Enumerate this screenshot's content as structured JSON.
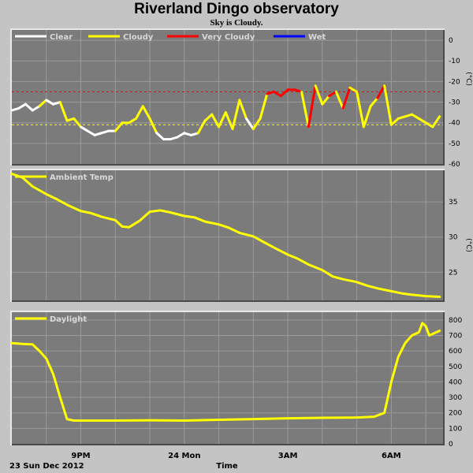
{
  "header": {
    "title": "Riverland Dingo observatory",
    "subtitle": "Sky is Cloudy."
  },
  "footer": {
    "date_label": "23 Sun Dec 2012",
    "time_label": "Time"
  },
  "colors": {
    "background": "#c4c4c4",
    "panel": "#7b7b7b",
    "grid": "#9a9a9a",
    "clear": "#ffffff",
    "cloudy": "#ffff00",
    "very_cloudy": "#ff0000",
    "wet": "#0000ff",
    "threshold_cloudy": "#ffff00",
    "threshold_very_cloudy": "#ff0000"
  },
  "chart_data": [
    {
      "type": "line",
      "id": "sky",
      "ylabel": "(°C)",
      "ylim": [
        -60,
        5
      ],
      "yticks": [
        0,
        -10,
        -20,
        -30,
        -40,
        -50,
        -60
      ],
      "grid": true,
      "legend_position": "top-left",
      "legend": [
        {
          "name": "Clear",
          "color": "#ffffff"
        },
        {
          "name": "Cloudy",
          "color": "#ffff00"
        },
        {
          "name": "Very Cloudy",
          "color": "#ff0000"
        },
        {
          "name": "Wet",
          "color": "#0000ff"
        }
      ],
      "thresholds": [
        {
          "value": -25,
          "color": "#ff0000"
        },
        {
          "value": -41,
          "color": "#ffff00"
        }
      ],
      "x": [
        19.0,
        19.2,
        19.4,
        19.6,
        19.8,
        20.0,
        20.2,
        20.4,
        20.6,
        20.8,
        21.0,
        21.2,
        21.4,
        21.6,
        21.8,
        22.0,
        22.2,
        22.4,
        22.6,
        22.8,
        23.0,
        23.2,
        23.4,
        23.6,
        23.8,
        24.0,
        24.2,
        24.4,
        24.6,
        24.8,
        25.0,
        25.2,
        25.4,
        25.6,
        25.8,
        26.0,
        26.2,
        26.4,
        26.6,
        26.8,
        27.0,
        27.2,
        27.4,
        27.6,
        27.8,
        28.0,
        28.2,
        28.4,
        28.6,
        28.8,
        29.0,
        29.2,
        29.4,
        29.6,
        29.8,
        30.0,
        30.2,
        30.4,
        30.6,
        30.8,
        31.0,
        31.2,
        31.4
      ],
      "y": [
        -34,
        -33,
        -31,
        -34,
        -32,
        -29,
        -31,
        -30,
        -39,
        -38,
        -42,
        -44,
        -46,
        -45,
        -44,
        -44,
        -40,
        -40,
        -38,
        -32,
        -38,
        -45,
        -48,
        -48,
        -47,
        -45,
        -46,
        -45,
        -39,
        -36,
        -42,
        -35,
        -43,
        -29,
        -38,
        -43,
        -38,
        -26,
        -25,
        -27,
        -24,
        -24,
        -25,
        -42,
        -22,
        -31,
        -27,
        -25,
        -33,
        -23,
        -25,
        -42,
        -32,
        -28,
        -22,
        -41,
        -38,
        -37,
        -36,
        -38,
        -40,
        -42,
        -37
      ],
      "states": [
        "clear",
        "clear",
        "clear",
        "clear",
        "clear",
        "cloudy",
        "clear",
        "clear",
        "cloudy",
        "cloudy",
        "cloudy",
        "clear",
        "clear",
        "clear",
        "clear",
        "clear",
        "cloudy",
        "cloudy",
        "cloudy",
        "cloudy",
        "cloudy",
        "cloudy",
        "clear",
        "clear",
        "clear",
        "clear",
        "clear",
        "clear",
        "cloudy",
        "cloudy",
        "cloudy",
        "cloudy",
        "cloudy",
        "cloudy",
        "cloudy",
        "clear",
        "cloudy",
        "cloudy",
        "very_cloudy",
        "very_cloudy",
        "very_cloudy",
        "very_cloudy",
        "very_cloudy",
        "cloudy",
        "very_cloudy",
        "cloudy",
        "cloudy",
        "very_cloudy",
        "cloudy",
        "very_cloudy",
        "cloudy",
        "cloudy",
        "cloudy",
        "cloudy",
        "very_cloudy",
        "cloudy",
        "cloudy",
        "cloudy",
        "cloudy",
        "cloudy",
        "cloudy",
        "cloudy",
        "cloudy"
      ]
    },
    {
      "type": "line",
      "id": "ambient",
      "ylabel": "(°C)",
      "ylim": [
        21,
        39.5
      ],
      "yticks": [
        25,
        30,
        35
      ],
      "grid": true,
      "legend_position": "top-left",
      "legend": [
        {
          "name": "Ambient Temp",
          "color": "#ffff00"
        }
      ],
      "x": [
        19.0,
        19.3,
        19.6,
        20.0,
        20.3,
        20.6,
        21.0,
        21.3,
        21.6,
        22.0,
        22.2,
        22.4,
        22.7,
        23.0,
        23.3,
        23.6,
        24.0,
        24.3,
        24.6,
        25.0,
        25.3,
        25.6,
        26.0,
        26.3,
        26.6,
        27.0,
        27.3,
        27.6,
        28.0,
        28.3,
        28.6,
        29.0,
        29.3,
        29.6,
        30.0,
        30.3,
        30.6,
        31.0,
        31.4
      ],
      "y": [
        39,
        38.5,
        37.2,
        36.1,
        35.4,
        34.6,
        33.7,
        33.4,
        32.9,
        32.4,
        31.5,
        31.4,
        32.3,
        33.6,
        33.8,
        33.5,
        33.0,
        32.8,
        32.2,
        31.8,
        31.3,
        30.6,
        30.1,
        29.3,
        28.5,
        27.5,
        26.9,
        26.1,
        25.3,
        24.4,
        24.0,
        23.6,
        23.1,
        22.7,
        22.3,
        22.0,
        21.8,
        21.6,
        21.5
      ]
    },
    {
      "type": "line",
      "id": "daylight",
      "ylim": [
        0,
        850
      ],
      "yticks": [
        0,
        100,
        200,
        300,
        400,
        500,
        600,
        700,
        800
      ],
      "grid": true,
      "legend_position": "top-left",
      "legend": [
        {
          "name": "Daylight",
          "color": "#ffff00"
        }
      ],
      "x": [
        19.0,
        19.3,
        19.6,
        19.8,
        20.0,
        20.2,
        20.4,
        20.6,
        20.8,
        21.0,
        21.3,
        22.0,
        23.0,
        24.0,
        25.0,
        26.0,
        27.0,
        28.0,
        29.0,
        29.5,
        29.8,
        30.0,
        30.2,
        30.4,
        30.6,
        30.8,
        30.9,
        31.0,
        31.1,
        31.2,
        31.4
      ],
      "y": [
        650,
        645,
        642,
        600,
        550,
        450,
        300,
        160,
        150,
        150,
        150,
        150,
        152,
        150,
        155,
        160,
        165,
        168,
        170,
        175,
        200,
        400,
        560,
        650,
        700,
        720,
        780,
        760,
        700,
        710,
        730
      ]
    }
  ],
  "x_axis": {
    "range": [
      19,
      31.5
    ],
    "tick_hours": [
      20,
      21,
      22,
      23,
      24,
      25,
      26,
      27,
      28,
      29,
      30,
      31
    ],
    "labels": [
      {
        "hour": 21,
        "text": "9PM"
      },
      {
        "hour": 24,
        "text": "24 Mon"
      },
      {
        "hour": 27,
        "text": "3AM"
      },
      {
        "hour": 30,
        "text": "6AM"
      }
    ]
  }
}
